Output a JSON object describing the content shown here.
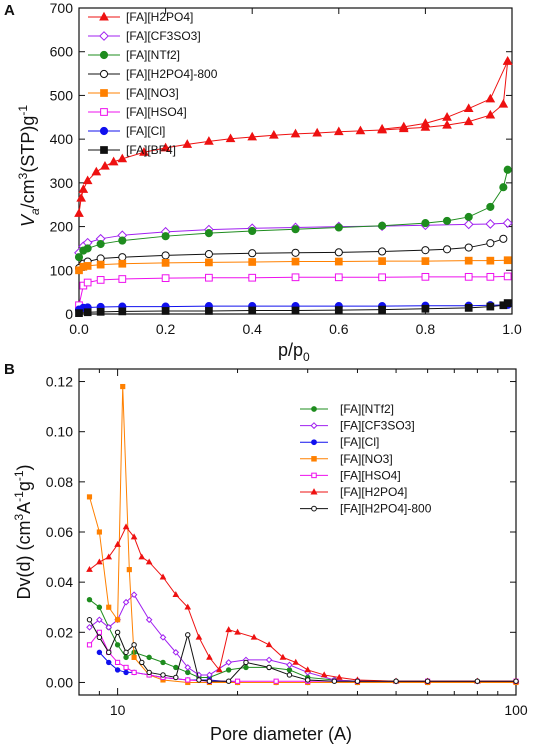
{
  "chart_data": [
    {
      "panel": "A",
      "type": "scatter",
      "xlabel": "p/p0",
      "ylabel": "Va/cm3(STP)g-1",
      "xlim": [
        0.0,
        1.0
      ],
      "ylim": [
        0,
        700
      ],
      "xticks": [
        0.0,
        0.2,
        0.4,
        0.6,
        0.8,
        1.0
      ],
      "xtick_labels": [
        "0.0",
        "0.2",
        "0.4",
        "0.6",
        "0.8",
        "1.0"
      ],
      "yticks": [
        0,
        100,
        200,
        300,
        400,
        500,
        600,
        700
      ],
      "ytick_labels": [
        "0",
        "100",
        "200",
        "300",
        "400",
        "500",
        "600",
        "700"
      ],
      "legend": "top-left",
      "series": [
        {
          "name": "[FA][H2PO4]",
          "color": "#ee1111",
          "marker": "triangle",
          "filled": true,
          "x": [
            0.0,
            0.005,
            0.01,
            0.02,
            0.04,
            0.06,
            0.08,
            0.1,
            0.15,
            0.2,
            0.25,
            0.3,
            0.35,
            0.4,
            0.45,
            0.5,
            0.55,
            0.6,
            0.65,
            0.7,
            0.75,
            0.8,
            0.85,
            0.9,
            0.95,
            0.98,
            0.99
          ],
          "y": [
            230,
            265,
            285,
            305,
            325,
            338,
            348,
            355,
            370,
            380,
            388,
            395,
            401,
            405,
            409,
            412,
            414,
            417,
            419,
            421,
            424,
            427,
            432,
            440,
            455,
            480,
            578
          ],
          "x2": [
            0.99,
            0.95,
            0.9,
            0.85,
            0.8,
            0.75,
            0.7
          ],
          "y2": [
            578,
            492,
            470,
            450,
            436,
            428,
            423
          ]
        },
        {
          "name": "[FA][CF3SO3]",
          "color": "#a020f0",
          "marker": "diamond",
          "filled": false,
          "x": [
            0.0,
            0.01,
            0.02,
            0.05,
            0.1,
            0.2,
            0.3,
            0.4,
            0.5,
            0.6,
            0.7,
            0.8,
            0.9,
            0.95,
            0.99
          ],
          "y": [
            140,
            155,
            163,
            172,
            180,
            188,
            193,
            196,
            198,
            200,
            201,
            203,
            205,
            206,
            208
          ]
        },
        {
          "name": "[FA][NTf2]",
          "color": "#1e8c1e",
          "marker": "circle",
          "filled": true,
          "x": [
            0.0,
            0.01,
            0.02,
            0.05,
            0.1,
            0.2,
            0.3,
            0.4,
            0.5,
            0.6,
            0.7,
            0.8,
            0.85,
            0.9,
            0.95,
            0.98,
            0.99
          ],
          "y": [
            130,
            145,
            150,
            160,
            168,
            178,
            185,
            190,
            194,
            198,
            202,
            208,
            213,
            222,
            245,
            290,
            330
          ]
        },
        {
          "name": "[FA][H2PO4]-800",
          "color": "#111111",
          "marker": "circle",
          "filled": false,
          "x": [
            0.0,
            0.01,
            0.02,
            0.05,
            0.1,
            0.2,
            0.3,
            0.4,
            0.5,
            0.6,
            0.7,
            0.8,
            0.85,
            0.9,
            0.95,
            0.98
          ],
          "y": [
            105,
            115,
            120,
            127,
            130,
            134,
            137,
            139,
            140,
            141,
            143,
            146,
            148,
            152,
            162,
            172
          ]
        },
        {
          "name": "[FA][NO3]",
          "color": "#ff8000",
          "marker": "square",
          "filled": true,
          "x": [
            0.0,
            0.01,
            0.02,
            0.05,
            0.1,
            0.2,
            0.3,
            0.4,
            0.5,
            0.6,
            0.7,
            0.8,
            0.9,
            0.95,
            0.99
          ],
          "y": [
            100,
            108,
            110,
            113,
            115,
            117,
            118,
            119,
            120,
            120,
            121,
            121,
            122,
            122,
            123
          ]
        },
        {
          "name": "[FA][HSO4]",
          "color": "#ee10ee",
          "marker": "square",
          "filled": false,
          "x": [
            0.0,
            0.01,
            0.02,
            0.05,
            0.1,
            0.2,
            0.3,
            0.4,
            0.5,
            0.6,
            0.7,
            0.8,
            0.9,
            0.95,
            0.99
          ],
          "y": [
            20,
            65,
            72,
            78,
            80,
            82,
            83,
            83,
            84,
            84,
            84,
            85,
            85,
            85,
            86
          ]
        },
        {
          "name": "[FA][Cl]",
          "color": "#1010ee",
          "marker": "circle",
          "filled": true,
          "x": [
            0.0,
            0.01,
            0.02,
            0.05,
            0.1,
            0.2,
            0.3,
            0.4,
            0.5,
            0.6,
            0.7,
            0.8,
            0.9,
            0.95,
            0.99
          ],
          "y": [
            10,
            14,
            15,
            16,
            17,
            17,
            18,
            18,
            18,
            18,
            18,
            19,
            19,
            20,
            21
          ]
        },
        {
          "name": "[FA][BF4]",
          "color": "#111111",
          "marker": "square",
          "filled": true,
          "x": [
            0.0,
            0.02,
            0.05,
            0.1,
            0.2,
            0.3,
            0.4,
            0.5,
            0.6,
            0.7,
            0.8,
            0.9,
            0.95,
            0.98,
            0.99
          ],
          "y": [
            2,
            4,
            5,
            6,
            7,
            7,
            8,
            8,
            9,
            10,
            12,
            14,
            17,
            20,
            25
          ]
        }
      ]
    },
    {
      "panel": "B",
      "type": "line",
      "xscale": "log",
      "xlabel": "Pore diameter (A)",
      "ylabel": "Dv(d) (cm3A-1g-1)",
      "xlim": [
        8,
        100
      ],
      "ylim": [
        -0.005,
        0.125
      ],
      "xticks": [
        10,
        100
      ],
      "xtick_labels": [
        "10",
        "100"
      ],
      "yticks": [
        0.0,
        0.02,
        0.04,
        0.06,
        0.08,
        0.1,
        0.12
      ],
      "ytick_labels": [
        "0.00",
        "0.02",
        "0.04",
        "0.06",
        "0.08",
        "0.10",
        "0.12"
      ],
      "legend": "right",
      "series": [
        {
          "name": "[FA][NTf2]",
          "color": "#1e8c1e",
          "marker": "circle",
          "filled": true,
          "x": [
            8.5,
            9,
            9.5,
            10,
            10.5,
            11,
            12,
            13,
            14,
            15,
            16,
            17,
            19,
            21,
            24,
            27,
            30,
            35,
            40,
            50,
            60,
            80,
            100
          ],
          "y": [
            0.033,
            0.03,
            0.022,
            0.015,
            0.01,
            0.012,
            0.01,
            0.008,
            0.006,
            0.004,
            0.002,
            0.002,
            0.005,
            0.006,
            0.006,
            0.005,
            0.002,
            0.001,
            0.0005,
            0.0005,
            0.0005,
            0.0005,
            0.0005
          ]
        },
        {
          "name": "[FA][CF3SO3]",
          "color": "#a020f0",
          "marker": "diamond",
          "filled": false,
          "x": [
            8.5,
            9,
            9.5,
            10,
            10.5,
            11,
            12,
            13,
            14,
            15,
            16,
            17,
            19,
            21,
            24,
            27,
            30,
            35,
            40,
            50,
            60,
            80,
            100
          ],
          "y": [
            0.022,
            0.025,
            0.022,
            0.025,
            0.032,
            0.035,
            0.025,
            0.018,
            0.012,
            0.006,
            0.003,
            0.003,
            0.008,
            0.009,
            0.009,
            0.007,
            0.004,
            0.001,
            0.0005,
            0.0005,
            0.0005,
            0.0005,
            0.0005
          ]
        },
        {
          "name": "[FA][Cl]",
          "color": "#1010ee",
          "marker": "circle",
          "filled": true,
          "x": [
            9,
            9.5,
            10,
            10.5,
            11,
            12,
            13,
            15,
            17,
            20,
            25,
            30,
            40,
            60,
            100
          ],
          "y": [
            0.012,
            0.008,
            0.005,
            0.004,
            0.004,
            0.003,
            0.002,
            0.001,
            0.001,
            0.0,
            0.0,
            0.0,
            0.0,
            0.0,
            0.0
          ]
        },
        {
          "name": "[FA][NO3]",
          "color": "#ff8000",
          "marker": "square",
          "filled": true,
          "x": [
            8.5,
            9,
            9.5,
            10,
            10.3,
            10.7,
            11,
            12,
            13,
            15,
            17,
            20,
            25,
            30,
            40,
            60,
            100
          ],
          "y": [
            0.074,
            0.06,
            0.03,
            0.025,
            0.118,
            0.045,
            0.01,
            0.003,
            0.001,
            0.0,
            0.0,
            0.0,
            0.0,
            0.0,
            0.0,
            0.0,
            0.0
          ]
        },
        {
          "name": "[FA][HSO4]",
          "color": "#ee10ee",
          "marker": "square",
          "filled": false,
          "x": [
            8.5,
            9,
            9.5,
            10,
            10.5,
            11,
            12,
            13,
            15,
            17,
            20,
            25,
            30,
            40,
            60,
            100
          ],
          "y": [
            0.015,
            0.02,
            0.012,
            0.008,
            0.006,
            0.004,
            0.003,
            0.002,
            0.001,
            0.0005,
            0.0005,
            0.0005,
            0.0005,
            0.0005,
            0.0005,
            0.0005
          ]
        },
        {
          "name": "[FA][H2PO4]",
          "color": "#ee1111",
          "marker": "triangle",
          "filled": true,
          "x": [
            8.5,
            9,
            9.5,
            10,
            10.5,
            11,
            11.5,
            12,
            13,
            14,
            15,
            16,
            17,
            18,
            19,
            20,
            22,
            24,
            26,
            28,
            30,
            33,
            36,
            40,
            50,
            60,
            80,
            100
          ],
          "y": [
            0.045,
            0.048,
            0.05,
            0.055,
            0.062,
            0.058,
            0.05,
            0.048,
            0.042,
            0.035,
            0.03,
            0.018,
            0.01,
            0.005,
            0.021,
            0.02,
            0.018,
            0.015,
            0.01,
            0.008,
            0.005,
            0.003,
            0.002,
            0.001,
            0.0005,
            0.0005,
            0.0005,
            0.0005
          ]
        },
        {
          "name": "[FA][H2PO4]-800",
          "color": "#111111",
          "marker": "circle",
          "filled": false,
          "x": [
            8.5,
            9,
            9.5,
            10,
            10.5,
            11,
            11.5,
            12,
            13,
            14,
            15,
            16,
            17,
            19,
            21,
            24,
            27,
            30,
            35,
            40,
            50,
            60,
            80,
            100
          ],
          "y": [
            0.025,
            0.018,
            0.012,
            0.02,
            0.012,
            0.015,
            0.008,
            0.004,
            0.003,
            0.002,
            0.019,
            0.001,
            0.0005,
            0.0005,
            0.008,
            0.006,
            0.003,
            0.001,
            0.0005,
            0.0005,
            0.0005,
            0.0005,
            0.0005,
            0.0005
          ]
        }
      ]
    }
  ]
}
